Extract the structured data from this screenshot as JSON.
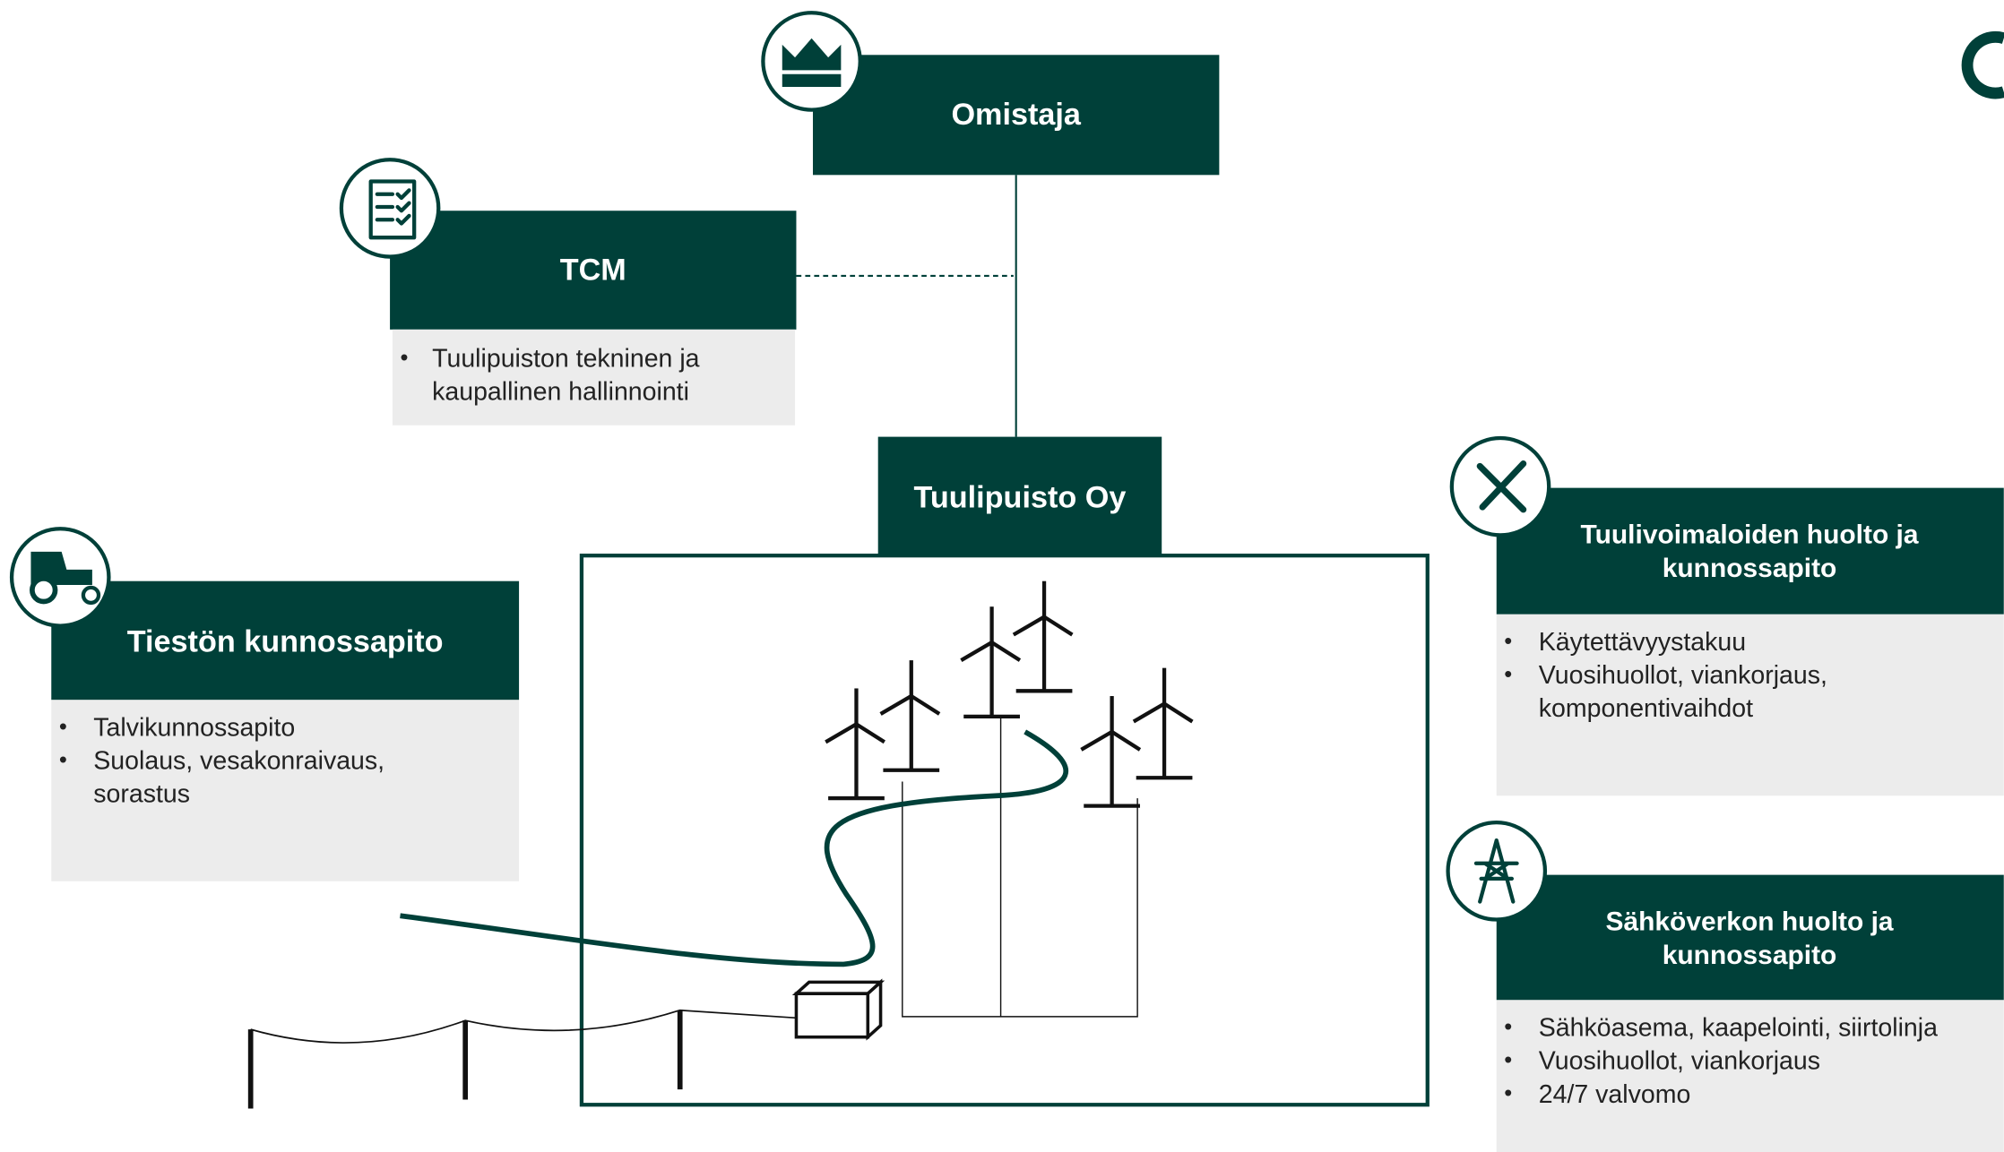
{
  "nodes": [
    {
      "title": [
        "Omistaja"
      ]
    },
    {
      "title": [
        "TCM"
      ],
      "items": [
        [
          "Tuulipuiston tekninen ja",
          "kaupallinen hallinnointi"
        ]
      ]
    },
    {
      "title": [
        "Tuulipuisto Oy"
      ]
    },
    {
      "title": [
        "Tiestön kunnossapito"
      ],
      "items": [
        [
          "Talvikunnossapito"
        ],
        [
          "Suolaus, vesakonraivaus,",
          "sorastus"
        ]
      ]
    },
    {
      "title": [
        "Tuulivoimaloiden huolto ja",
        "kunnossapito"
      ],
      "items": [
        [
          "Käytettävyystakuu"
        ],
        [
          "Vuosihuollot, viankorjaus,",
          "komponentivaihdot"
        ]
      ]
    },
    {
      "title": [
        "Sähköverkon huolto ja",
        "kunnossapito"
      ],
      "items": [
        [
          "Sähköasema, kaapelointi, siirtolinja"
        ],
        [
          "Vuosihuollot, viankorjaus"
        ],
        [
          "24/7 valvomo"
        ]
      ]
    }
  ]
}
